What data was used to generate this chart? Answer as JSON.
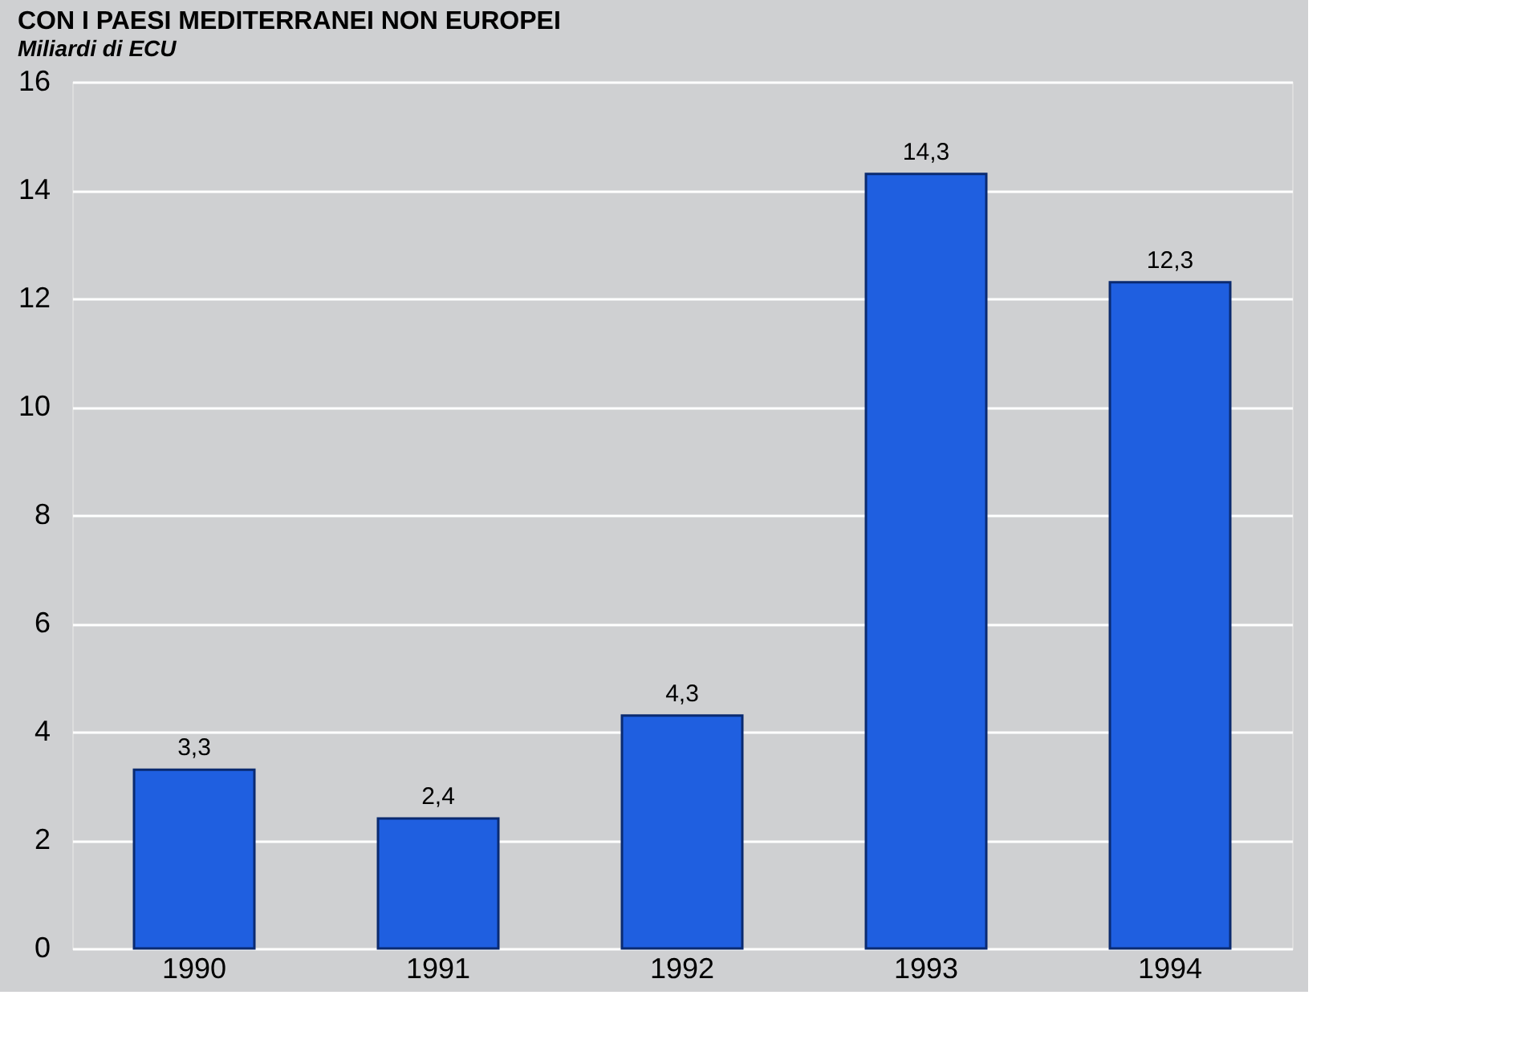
{
  "chart_data": {
    "type": "bar",
    "title": "CON I PAESI MEDITERRANEI NON EUROPEI",
    "ylabel": "Miliardi di ECU",
    "categories": [
      "1990",
      "1991",
      "1992",
      "1993",
      "1994"
    ],
    "values": [
      3.3,
      2.4,
      4.3,
      14.3,
      12.3
    ],
    "color": "#1f5fe0",
    "value_labels": [
      "3,3",
      "2,4",
      "4,3",
      "14,3",
      "12,3"
    ],
    "ylim": [
      0,
      16
    ],
    "yticks": [
      0,
      2,
      4,
      6,
      8,
      10,
      12,
      14,
      16
    ],
    "grid": "y"
  }
}
